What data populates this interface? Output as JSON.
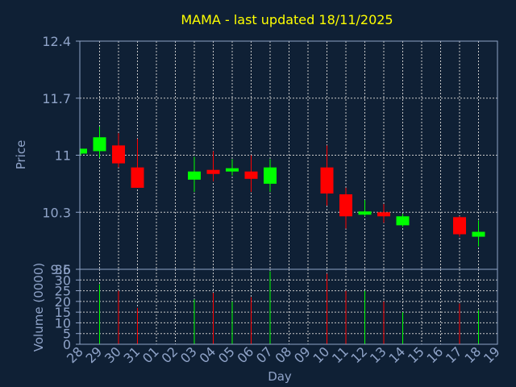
{
  "chart_data": [
    {
      "type": "candlestick",
      "title": "MAMA - last updated 18/11/2025",
      "xlabel": "",
      "ylabel": "Price",
      "ylim": [
        9.6,
        12.4
      ],
      "yticks": [
        "12.4",
        "11.7",
        "11",
        "10.3",
        "9.6"
      ],
      "categories": [
        "28",
        "29",
        "30",
        "31",
        "01",
        "02",
        "03",
        "04",
        "05",
        "06",
        "07",
        "08",
        "09",
        "10",
        "11",
        "12",
        "13",
        "14",
        "15",
        "16",
        "17",
        "18",
        "19"
      ],
      "candles": [
        {
          "day": "28",
          "open": 11.02,
          "high": 11.08,
          "low": 11.0,
          "close": 11.08
        },
        {
          "day": "29",
          "open": 11.05,
          "high": 11.35,
          "low": 10.97,
          "close": 11.22
        },
        {
          "day": "30",
          "open": 11.12,
          "high": 11.27,
          "low": 10.85,
          "close": 10.9
        },
        {
          "day": "31",
          "open": 10.85,
          "high": 11.2,
          "low": 10.6,
          "close": 10.6
        },
        {
          "day": "03",
          "open": 10.7,
          "high": 10.98,
          "low": 10.55,
          "close": 10.8
        },
        {
          "day": "04",
          "open": 10.82,
          "high": 11.05,
          "low": 10.68,
          "close": 10.77
        },
        {
          "day": "05",
          "open": 10.8,
          "high": 10.95,
          "low": 10.75,
          "close": 10.84
        },
        {
          "day": "06",
          "open": 10.8,
          "high": 11.0,
          "low": 10.55,
          "close": 10.71
        },
        {
          "day": "07",
          "open": 10.65,
          "high": 10.95,
          "low": 10.55,
          "close": 10.85
        },
        {
          "day": "10",
          "open": 10.85,
          "high": 11.12,
          "low": 10.38,
          "close": 10.53
        },
        {
          "day": "11",
          "open": 10.52,
          "high": 10.6,
          "low": 10.1,
          "close": 10.25
        },
        {
          "day": "12",
          "open": 10.27,
          "high": 10.45,
          "low": 10.25,
          "close": 10.31
        },
        {
          "day": "13",
          "open": 10.3,
          "high": 10.4,
          "low": 10.17,
          "close": 10.25
        },
        {
          "day": "14",
          "open": 10.14,
          "high": 10.28,
          "low": 10.12,
          "close": 10.25
        },
        {
          "day": "17",
          "open": 10.24,
          "high": 10.25,
          "low": 10.0,
          "close": 10.03
        },
        {
          "day": "18",
          "open": 10.0,
          "high": 10.2,
          "low": 9.88,
          "close": 10.06
        }
      ],
      "colors": {
        "up": "#00ff00",
        "down": "#ff0000"
      }
    },
    {
      "type": "bar",
      "ylabel": "Volume (0000)",
      "xlabel": "Day",
      "ylim": [
        0,
        35
      ],
      "yticks": [
        "35",
        "30",
        "25",
        "20",
        "15",
        "10",
        "5",
        "0"
      ],
      "categories": [
        "28",
        "29",
        "30",
        "31",
        "01",
        "02",
        "03",
        "04",
        "05",
        "06",
        "07",
        "08",
        "09",
        "10",
        "11",
        "12",
        "13",
        "14",
        "15",
        "16",
        "17",
        "18",
        "19"
      ],
      "bars": [
        {
          "day": "29",
          "value": 28,
          "color": "#00ff00"
        },
        {
          "day": "30",
          "value": 25,
          "color": "#ff0000"
        },
        {
          "day": "31",
          "value": 17,
          "color": "#ff0000"
        },
        {
          "day": "03",
          "value": 21,
          "color": "#00ff00"
        },
        {
          "day": "04",
          "value": 24,
          "color": "#ff0000"
        },
        {
          "day": "05",
          "value": 20,
          "color": "#00ff00"
        },
        {
          "day": "06",
          "value": 22,
          "color": "#ff0000"
        },
        {
          "day": "07",
          "value": 34,
          "color": "#00ff00"
        },
        {
          "day": "10",
          "value": 33,
          "color": "#ff0000"
        },
        {
          "day": "11",
          "value": 25,
          "color": "#ff0000"
        },
        {
          "day": "12",
          "value": 25,
          "color": "#00ff00"
        },
        {
          "day": "13",
          "value": 20,
          "color": "#ff0000"
        },
        {
          "day": "14",
          "value": 15,
          "color": "#00ff00"
        },
        {
          "day": "17",
          "value": 19,
          "color": "#ff0000"
        },
        {
          "day": "18",
          "value": 16,
          "color": "#00ff00"
        }
      ]
    }
  ],
  "colors": {
    "background": "#0f2035",
    "axis": "#8fa3c8",
    "grid": "#c8c8c8",
    "title": "#ffff00"
  }
}
